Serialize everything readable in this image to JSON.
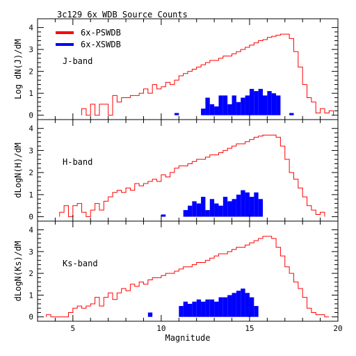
{
  "title": "3c129  6x WDB Source Counts",
  "legend": [
    {
      "label": "6x-PSWDB",
      "color": "#ff0000"
    },
    {
      "label": "6x-XSWDB",
      "color": "#0000ff"
    }
  ],
  "colors": {
    "pswdb": "#ff0000",
    "xswdb": "#0000ff"
  },
  "chart_data": [
    {
      "type": "area",
      "panel_label": "J-band",
      "ylabel": "Log dN(J)/dM",
      "xlabel": "",
      "xlim": [
        3,
        20
      ],
      "ylim": [
        -0.2,
        4.4
      ],
      "bin_width": 0.25,
      "xticks": [
        5,
        10,
        15,
        20
      ],
      "yticks": [
        0,
        1,
        2,
        3,
        4
      ],
      "series": [
        {
          "name": "6x-PSWDB",
          "style": "step",
          "x": [
            5.5,
            5.75,
            6.0,
            6.25,
            6.5,
            6.75,
            7.0,
            7.25,
            7.5,
            7.75,
            8.0,
            8.25,
            8.5,
            8.75,
            9.0,
            9.25,
            9.5,
            9.75,
            10.0,
            10.25,
            10.5,
            10.75,
            11.0,
            11.25,
            11.5,
            11.75,
            12.0,
            12.25,
            12.5,
            12.75,
            13.0,
            13.25,
            13.5,
            13.75,
            14.0,
            14.25,
            14.5,
            14.75,
            15.0,
            15.25,
            15.5,
            15.75,
            16.0,
            16.25,
            16.5,
            16.75,
            17.0,
            17.25,
            17.5,
            17.75,
            18.0,
            18.25,
            18.5,
            18.75,
            19.0,
            19.25,
            19.5
          ],
          "values": [
            0.3,
            0.0,
            0.5,
            0.0,
            0.5,
            0.5,
            0.0,
            0.9,
            0.6,
            0.8,
            0.8,
            0.9,
            0.9,
            1.0,
            1.2,
            1.0,
            1.4,
            1.2,
            1.3,
            1.5,
            1.4,
            1.6,
            1.8,
            1.9,
            2.0,
            2.1,
            2.2,
            2.3,
            2.4,
            2.5,
            2.5,
            2.6,
            2.7,
            2.7,
            2.8,
            2.9,
            3.0,
            3.1,
            3.2,
            3.3,
            3.4,
            3.45,
            3.55,
            3.6,
            3.65,
            3.7,
            3.7,
            3.5,
            2.9,
            2.2,
            1.4,
            0.8,
            0.6,
            0.1,
            0.3,
            0.1,
            0.2
          ]
        },
        {
          "name": "6x-XSWDB",
          "style": "filled",
          "x": [
            10.75,
            12.25,
            12.5,
            12.75,
            13.0,
            13.25,
            13.5,
            13.75,
            14.0,
            14.25,
            14.5,
            14.75,
            15.0,
            15.25,
            15.5,
            15.75,
            16.0,
            16.25,
            16.5,
            17.25
          ],
          "values": [
            0.1,
            0.3,
            0.8,
            0.5,
            0.4,
            0.9,
            0.9,
            0.5,
            0.9,
            0.6,
            0.8,
            0.9,
            1.2,
            1.1,
            1.2,
            0.9,
            1.1,
            1.0,
            0.9,
            0.1
          ]
        }
      ]
    },
    {
      "type": "area",
      "panel_label": "H-band",
      "ylabel": "dLogN(H)/dM",
      "xlabel": "",
      "xlim": [
        3,
        20
      ],
      "ylim": [
        -0.2,
        4.4
      ],
      "bin_width": 0.25,
      "xticks": [
        5,
        10,
        15,
        20
      ],
      "yticks": [
        0,
        1,
        2,
        3,
        4
      ],
      "series": [
        {
          "name": "6x-PSWDB",
          "style": "step",
          "x": [
            4.25,
            4.5,
            4.75,
            5.0,
            5.25,
            5.5,
            5.75,
            6.0,
            6.25,
            6.5,
            6.75,
            7.0,
            7.25,
            7.5,
            7.75,
            8.0,
            8.25,
            8.5,
            8.75,
            9.0,
            9.25,
            9.5,
            9.75,
            10.0,
            10.25,
            10.5,
            10.75,
            11.0,
            11.25,
            11.5,
            11.75,
            12.0,
            12.25,
            12.5,
            12.75,
            13.0,
            13.25,
            13.5,
            13.75,
            14.0,
            14.25,
            14.5,
            14.75,
            15.0,
            15.25,
            15.5,
            15.75,
            16.0,
            16.25,
            16.5,
            16.75,
            17.0,
            17.25,
            17.5,
            17.75,
            18.0,
            18.25,
            18.5,
            18.75,
            19.0
          ],
          "values": [
            0.2,
            0.5,
            0.0,
            0.5,
            0.6,
            0.2,
            0.0,
            0.3,
            0.6,
            0.3,
            0.7,
            0.9,
            1.1,
            1.2,
            1.1,
            1.3,
            1.2,
            1.5,
            1.4,
            1.5,
            1.6,
            1.7,
            1.6,
            1.9,
            1.8,
            2.0,
            2.2,
            2.3,
            2.3,
            2.4,
            2.5,
            2.6,
            2.6,
            2.7,
            2.8,
            2.8,
            2.9,
            3.0,
            3.1,
            3.2,
            3.3,
            3.3,
            3.4,
            3.5,
            3.6,
            3.65,
            3.7,
            3.7,
            3.7,
            3.6,
            3.2,
            2.6,
            2.0,
            1.7,
            1.3,
            0.9,
            0.5,
            0.3,
            0.1,
            0.2
          ]
        },
        {
          "name": "6x-XSWDB",
          "style": "filled",
          "x": [
            10.0,
            11.25,
            11.5,
            11.75,
            12.0,
            12.25,
            12.5,
            12.75,
            13.0,
            13.25,
            13.5,
            13.75,
            14.0,
            14.25,
            14.5,
            14.75,
            15.0,
            15.25,
            15.5
          ],
          "values": [
            0.1,
            0.3,
            0.5,
            0.7,
            0.6,
            0.9,
            0.3,
            0.8,
            0.6,
            0.5,
            0.9,
            0.7,
            0.8,
            1.0,
            1.2,
            1.1,
            0.9,
            1.1,
            0.8
          ]
        }
      ]
    },
    {
      "type": "area",
      "panel_label": "Ks-band",
      "ylabel": "dLogN(Ks)/dM",
      "xlabel": "Magnitude",
      "xlim": [
        3,
        20
      ],
      "ylim": [
        -0.2,
        4.4
      ],
      "bin_width": 0.25,
      "xticks": [
        5,
        10,
        15,
        20
      ],
      "yticks": [
        0,
        1,
        2,
        3,
        4
      ],
      "series": [
        {
          "name": "6x-PSWDB",
          "style": "step",
          "x": [
            3.5,
            3.75,
            4.0,
            4.25,
            4.5,
            4.75,
            5.0,
            5.25,
            5.5,
            5.75,
            6.0,
            6.25,
            6.5,
            6.75,
            7.0,
            7.25,
            7.5,
            7.75,
            8.0,
            8.25,
            8.5,
            8.75,
            9.0,
            9.25,
            9.5,
            9.75,
            10.0,
            10.25,
            10.5,
            10.75,
            11.0,
            11.25,
            11.5,
            11.75,
            12.0,
            12.25,
            12.5,
            12.75,
            13.0,
            13.25,
            13.5,
            13.75,
            14.0,
            14.25,
            14.5,
            14.75,
            15.0,
            15.25,
            15.5,
            15.75,
            16.0,
            16.25,
            16.5,
            16.75,
            17.0,
            17.25,
            17.5,
            17.75,
            18.0,
            18.25,
            18.5,
            18.75,
            19.0,
            19.25
          ],
          "values": [
            0.1,
            0.0,
            0.0,
            0.0,
            0.0,
            0.2,
            0.4,
            0.5,
            0.4,
            0.5,
            0.6,
            0.9,
            0.5,
            0.9,
            1.1,
            0.8,
            1.1,
            1.3,
            1.2,
            1.5,
            1.4,
            1.6,
            1.5,
            1.7,
            1.8,
            1.8,
            1.9,
            2.0,
            2.0,
            2.1,
            2.2,
            2.3,
            2.3,
            2.4,
            2.5,
            2.5,
            2.6,
            2.7,
            2.8,
            2.9,
            2.9,
            3.0,
            3.1,
            3.2,
            3.2,
            3.3,
            3.4,
            3.5,
            3.6,
            3.7,
            3.7,
            3.6,
            3.2,
            2.8,
            2.3,
            2.0,
            1.6,
            1.3,
            0.9,
            0.4,
            0.2,
            0.1,
            0.1,
            0.0
          ]
        },
        {
          "name": "6x-XSWDB",
          "style": "filled",
          "x": [
            9.25,
            11.0,
            11.25,
            11.5,
            11.75,
            12.0,
            12.25,
            12.5,
            12.75,
            13.0,
            13.25,
            13.5,
            13.75,
            14.0,
            14.25,
            14.5,
            14.75,
            15.0,
            15.25
          ],
          "values": [
            0.2,
            0.5,
            0.7,
            0.6,
            0.7,
            0.8,
            0.7,
            0.8,
            0.8,
            0.7,
            0.9,
            0.9,
            1.0,
            1.1,
            1.2,
            1.3,
            1.1,
            0.9,
            0.5
          ]
        }
      ]
    }
  ]
}
